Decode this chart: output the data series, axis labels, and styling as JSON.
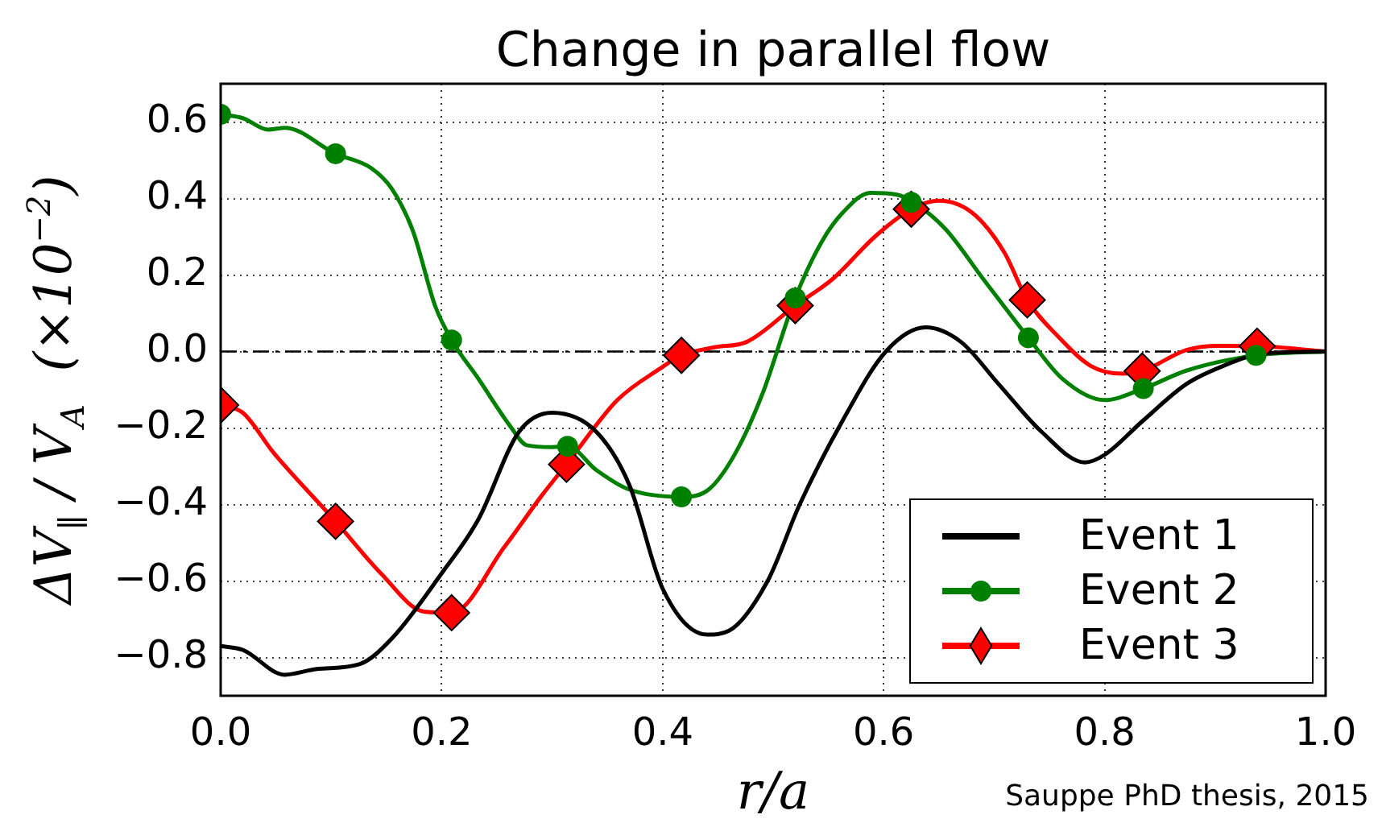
{
  "chart_data": {
    "type": "line",
    "title": "Change in parallel flow",
    "xlabel": "r/a",
    "ylabel": "ΔV$_{∥}$ / V$_{A}$  (×10$^{−2}$)",
    "annotations": [
      "Sauppe PhD thesis, 2015"
    ],
    "xlim": [
      0,
      1
    ],
    "ylim": [
      -0.9,
      0.7
    ],
    "xticks": [
      {
        "value": 0,
        "label": "0.0"
      },
      {
        "value": 0.2,
        "label": "0.2"
      },
      {
        "value": 0.4,
        "label": "0.4"
      },
      {
        "value": 0.6,
        "label": "0.6"
      },
      {
        "value": 0.8,
        "label": "0.8"
      },
      {
        "value": 1,
        "label": "1.0"
      }
    ],
    "yticks": [
      {
        "value": -0.8,
        "label": "−0.8"
      },
      {
        "value": -0.6,
        "label": "−0.6"
      },
      {
        "value": -0.4,
        "label": "−0.4"
      },
      {
        "value": -0.2,
        "label": "−0.2"
      },
      {
        "value": 0,
        "label": "0.0"
      },
      {
        "value": 0.2,
        "label": "0.2"
      },
      {
        "value": 0.4,
        "label": "0.4"
      },
      {
        "value": 0.6,
        "label": "0.6"
      }
    ],
    "grid": true,
    "legend": "bottom right",
    "line_style": "solid",
    "ref_lines": [
      {
        "axis": "y",
        "value": 0,
        "color": "#000000",
        "line_style": "dashdot"
      }
    ],
    "series": [
      {
        "name": "Event 1",
        "type": "line",
        "color": "#000000",
        "x": [
          0,
          0.02,
          0.058,
          0.087,
          0.126,
          0.155,
          0.2,
          0.233,
          0.27,
          0.3,
          0.34,
          0.37,
          0.4,
          0.44,
          0.46,
          0.495,
          0.524,
          0.563,
          0.602,
          0.638,
          0.67,
          0.704,
          0.743,
          0.782,
          0.8,
          0.835,
          0.874,
          0.908,
          0.942,
          1.0
        ],
        "values": [
          -0.77,
          -0.78,
          -0.845,
          -0.83,
          -0.817,
          -0.75,
          -0.58,
          -0.44,
          -0.21,
          -0.16,
          -0.21,
          -0.35,
          -0.62,
          -0.74,
          -0.73,
          -0.6,
          -0.4,
          -0.18,
          0,
          0.063,
          0.025,
          -0.085,
          -0.21,
          -0.29,
          -0.27,
          -0.18,
          -0.085,
          -0.037,
          -0.006,
          0
        ]
      },
      {
        "name": "Event 2",
        "type": "line",
        "color": "#008000",
        "x": [
          0,
          0.02,
          0.043,
          0.058,
          0.104,
          0.136,
          0.155,
          0.174,
          0.194,
          0.209,
          0.233,
          0.262,
          0.277,
          0.3,
          0.314,
          0.34,
          0.369,
          0.417,
          0.442,
          0.466,
          0.49,
          0.52,
          0.544,
          0.563,
          0.588,
          0.612,
          0.627,
          0.656,
          0.69,
          0.731,
          0.762,
          0.8,
          0.835,
          0.874,
          0.937,
          1.0
        ],
        "values": [
          0.62,
          0.61,
          0.58,
          0.585,
          0.517,
          0.48,
          0.425,
          0.315,
          0.12,
          0.03,
          -0.07,
          -0.195,
          -0.245,
          -0.25,
          -0.248,
          -0.31,
          -0.36,
          -0.38,
          -0.36,
          -0.265,
          -0.113,
          0.14,
          0.287,
          0.363,
          0.415,
          0.41,
          0.39,
          0.32,
          0.19,
          0.036,
          -0.072,
          -0.127,
          -0.097,
          -0.05,
          -0.01,
          0
        ]
      },
      {
        "type": "scatter",
        "color": "#008000",
        "marker": "circle",
        "x": [
          0,
          0.104,
          0.209,
          0.314,
          0.417,
          0.52,
          0.625,
          0.731,
          0.835,
          0.937
        ],
        "values": [
          0.62,
          0.517,
          0.03,
          -0.248,
          -0.38,
          0.14,
          0.39,
          0.036,
          -0.097,
          -0.01
        ]
      },
      {
        "name": "Event 3",
        "type": "line",
        "color": "#ff0000",
        "x": [
          0,
          0.02,
          0.048,
          0.104,
          0.145,
          0.184,
          0.209,
          0.257,
          0.291,
          0.313,
          0.359,
          0.398,
          0.417,
          0.447,
          0.476,
          0.52,
          0.554,
          0.592,
          0.625,
          0.65,
          0.68,
          0.709,
          0.73,
          0.758,
          0.787,
          0.816,
          0.834,
          0.874,
          0.903,
          0.938,
          1.0
        ],
        "values": [
          -0.14,
          -0.16,
          -0.265,
          -0.444,
          -0.58,
          -0.68,
          -0.683,
          -0.51,
          -0.375,
          -0.295,
          -0.127,
          -0.044,
          -0.01,
          0.011,
          0.025,
          0.12,
          0.19,
          0.3,
          0.372,
          0.394,
          0.363,
          0.26,
          0.135,
          0.039,
          -0.037,
          -0.058,
          -0.051,
          0.004,
          0.015,
          0.014,
          0
        ]
      },
      {
        "type": "scatter",
        "color": "#ff0000",
        "marker": "diamond",
        "x": [
          0,
          0.104,
          0.209,
          0.313,
          0.417,
          0.52,
          0.625,
          0.73,
          0.834,
          0.938
        ],
        "values": [
          -0.14,
          -0.444,
          -0.683,
          -0.295,
          -0.01,
          0.12,
          0.372,
          0.135,
          -0.051,
          0.014
        ]
      }
    ]
  }
}
